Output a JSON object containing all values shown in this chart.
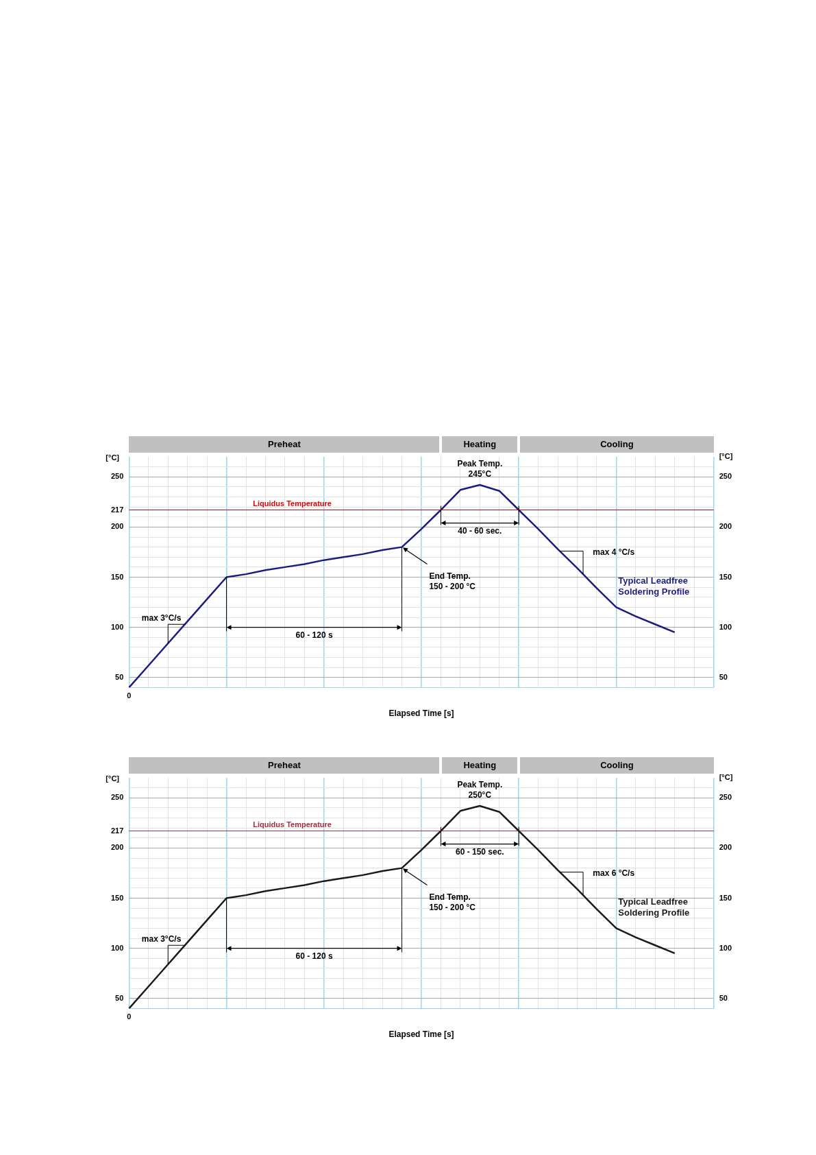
{
  "chart_data": [
    {
      "type": "line",
      "xlabel": "Elapsed Time [s]",
      "ylabel": "[°C]",
      "y2label": "[°C]",
      "categories": [
        "0",
        null,
        null,
        null,
        null,
        null,
        null,
        null,
        null,
        null,
        null,
        null,
        null,
        null,
        null,
        null,
        null,
        null,
        null,
        null,
        null,
        null,
        null,
        null,
        null,
        null,
        null,
        null,
        null,
        null,
        null
      ],
      "series": [
        {
          "name": "Typical Leadfree Soldering Profile",
          "color": "#1c1c80",
          "values": [
            40,
            62,
            84,
            106,
            128,
            150,
            153,
            157,
            160,
            163,
            167,
            170,
            173,
            177,
            180,
            198,
            217,
            237,
            242,
            236,
            217,
            198,
            178,
            159,
            139,
            120,
            111,
            103,
            95,
            null,
            null
          ]
        }
      ],
      "ylim": [
        40,
        270
      ],
      "yticks": [
        50,
        {
          "value": 60,
          "label": null
        },
        {
          "value": 70,
          "label": null
        },
        {
          "value": 80,
          "label": null
        },
        {
          "value": 90,
          "label": null
        },
        100,
        {
          "value": 110,
          "label": null
        },
        {
          "value": 120,
          "label": null
        },
        {
          "value": 130,
          "label": null
        },
        {
          "value": 140,
          "label": null
        },
        150,
        {
          "value": 160,
          "label": null
        },
        {
          "value": 170,
          "label": null
        },
        {
          "value": 180,
          "label": null
        },
        {
          "value": 190,
          "label": null
        },
        200,
        {
          "value": 210,
          "label": null
        },
        217,
        {
          "value": 220,
          "label": null
        },
        {
          "value": 230,
          "label": null
        },
        {
          "value": 240,
          "label": null
        },
        250,
        {
          "value": 260,
          "label": null
        }
      ],
      "y2lim": [
        40,
        270
      ],
      "y2ticks": [
        50,
        100,
        150,
        200,
        250
      ],
      "grid": true,
      "ref_lines": [
        {
          "axis": "y",
          "value": 217,
          "label": "Liquidus Temperature",
          "color": "#e00000"
        }
      ],
      "annotations": [
        "Preheat",
        "Heating",
        "Cooling",
        "Peak Temp.\n245°C",
        "max 3°C/s",
        "60 - 120 s",
        "40 - 60 sec.",
        "End Temp.\n150 - 200 °C",
        "max 4 °C/s"
      ]
    },
    {
      "type": "line",
      "xlabel": "Elapsed Time [s]",
      "ylabel": "[°C]",
      "y2label": "[°C]",
      "categories": [
        "0",
        null,
        null,
        null,
        null,
        null,
        null,
        null,
        null,
        null,
        null,
        null,
        null,
        null,
        null,
        null,
        null,
        null,
        null,
        null,
        null,
        null,
        null,
        null,
        null,
        null,
        null,
        null,
        null,
        null,
        null
      ],
      "series": [
        {
          "name": "Typical Leadfree Soldering Profile",
          "color": "#1a1a1a",
          "values": [
            40,
            62,
            84,
            106,
            128,
            150,
            153,
            157,
            160,
            163,
            167,
            170,
            173,
            177,
            180,
            198,
            217,
            237,
            242,
            236,
            217,
            198,
            178,
            159,
            139,
            120,
            111,
            103,
            95,
            null,
            null
          ]
        }
      ],
      "ylim": [
        40,
        270
      ],
      "yticks": [
        50,
        {
          "value": 60,
          "label": null
        },
        {
          "value": 70,
          "label": null
        },
        {
          "value": 80,
          "label": null
        },
        {
          "value": 90,
          "label": null
        },
        100,
        {
          "value": 110,
          "label": null
        },
        {
          "value": 120,
          "label": null
        },
        {
          "value": 130,
          "label": null
        },
        {
          "value": 140,
          "label": null
        },
        150,
        {
          "value": 160,
          "label": null
        },
        {
          "value": 170,
          "label": null
        },
        {
          "value": 180,
          "label": null
        },
        {
          "value": 190,
          "label": null
        },
        200,
        {
          "value": 210,
          "label": null
        },
        217,
        {
          "value": 220,
          "label": null
        },
        {
          "value": 230,
          "label": null
        },
        {
          "value": 240,
          "label": null
        },
        250,
        {
          "value": 260,
          "label": null
        }
      ],
      "y2lim": [
        40,
        270
      ],
      "y2ticks": [
        50,
        100,
        150,
        200,
        250
      ],
      "grid": true,
      "ref_lines": [
        {
          "axis": "y",
          "value": 217,
          "label": "Liquidus Temperature",
          "color": "#a03040"
        }
      ],
      "annotations": [
        "Preheat",
        "Heating",
        "Cooling",
        "Peak Temp.\n250°C",
        "max 3°C/s",
        "60 - 120 s",
        "60 - 150 sec.",
        "End Temp.\n150 - 200 °C",
        "max 6 °C/s"
      ]
    }
  ]
}
